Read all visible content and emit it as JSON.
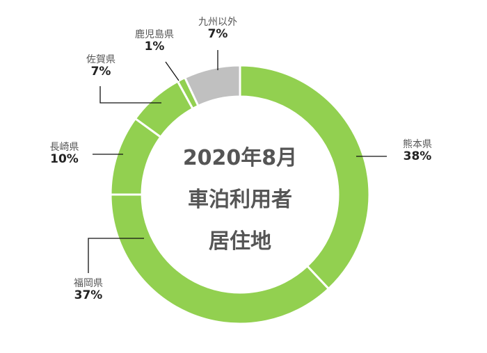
{
  "chart_data": {
    "type": "pie",
    "variant": "donut",
    "title": "2020年8月 車泊利用者 居住地",
    "center_text": [
      "2020年8月",
      "車泊利用者",
      "居住地"
    ],
    "categories": [
      "熊本県",
      "福岡県",
      "長崎県",
      "佐賀県",
      "鹿児島県",
      "九州以外"
    ],
    "values": [
      38,
      37,
      10,
      7,
      1,
      7
    ],
    "unit": "%",
    "colors": [
      "#92d050",
      "#92d050",
      "#92d050",
      "#92d050",
      "#92d050",
      "#c0c0c0"
    ],
    "start_angle": "12 o'clock",
    "direction": "clockwise",
    "legend": "none (leader-line labels)"
  },
  "labels": [
    {
      "name": "熊本県",
      "pct": "38%"
    },
    {
      "name": "福岡県",
      "pct": "37%"
    },
    {
      "name": "長崎県",
      "pct": "10%"
    },
    {
      "name": "佐賀県",
      "pct": "7%"
    },
    {
      "name": "鹿児島県",
      "pct": "1%"
    },
    {
      "name": "九州以外",
      "pct": "7%"
    }
  ],
  "center": {
    "line1": "2020年8月",
    "line2": "車泊利用者",
    "line3": "居住地"
  }
}
